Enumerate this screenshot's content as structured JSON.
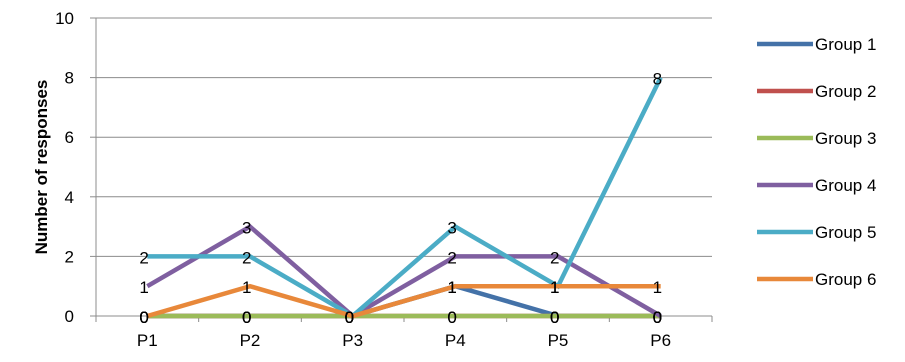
{
  "chart_data": {
    "type": "line",
    "title": "",
    "xlabel": "",
    "ylabel": "Number of responses",
    "categories": [
      "P1",
      "P2",
      "P3",
      "P4",
      "P5",
      "P6"
    ],
    "ylim": [
      0,
      10
    ],
    "yticks": [
      0,
      2,
      4,
      6,
      8,
      10
    ],
    "grid": "horizontal",
    "legend": "right",
    "series": [
      {
        "name": "Group 1",
        "color": "#4472A8",
        "values": [
          0,
          0,
          0,
          1,
          0,
          0
        ]
      },
      {
        "name": "Group 2",
        "color": "#C0504D",
        "values": [
          0,
          0,
          0,
          0,
          0,
          0
        ]
      },
      {
        "name": "Group 3",
        "color": "#9BBB59",
        "values": [
          0,
          0,
          0,
          0,
          0,
          0
        ]
      },
      {
        "name": "Group 4",
        "color": "#7F5FA0",
        "values": [
          1,
          3,
          0,
          2,
          2,
          0
        ]
      },
      {
        "name": "Group 5",
        "color": "#4BACC6",
        "values": [
          2,
          2,
          0,
          3,
          1,
          8
        ]
      },
      {
        "name": "Group 6",
        "color": "#E8883A",
        "values": [
          0,
          1,
          0,
          1,
          1,
          1
        ]
      }
    ]
  }
}
